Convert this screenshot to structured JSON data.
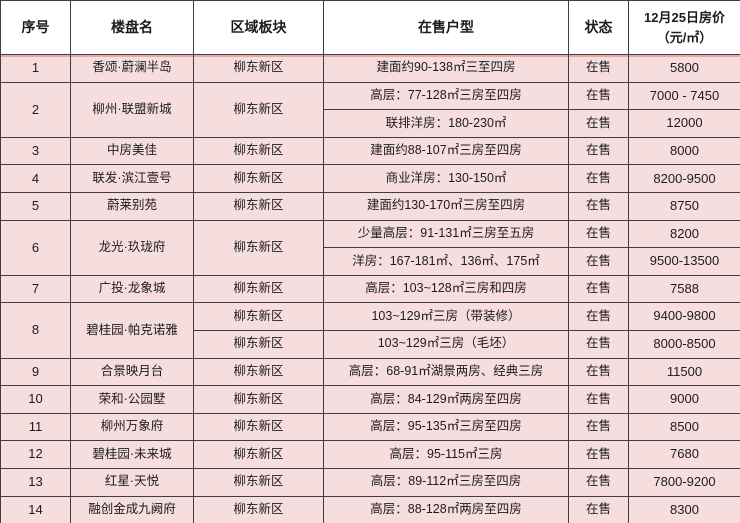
{
  "theme": {
    "border-color": "#3f3f3f",
    "header-bg": "#ffffff",
    "row-bg": "#f6dede",
    "accent-line": "#eea7a5",
    "text-color": "#1c1c1c"
  },
  "header": {
    "col_no": "序号",
    "col_name": "楼盘名",
    "col_region": "区域板块",
    "col_type": "在售户型",
    "col_status": "状态",
    "col_price_line1": "12月25日房价",
    "col_price_line2": "（元/㎡）"
  },
  "rows": [
    {
      "no": "1",
      "name": "香颂·蔚澜半岛",
      "region": "柳东新区",
      "region_split": false,
      "subrows": [
        {
          "type": "建面约90-138㎡三至四房",
          "status": "在售",
          "price": "5800"
        }
      ]
    },
    {
      "no": "2",
      "name": "柳州·联盟新城",
      "region": "柳东新区",
      "region_split": false,
      "subrows": [
        {
          "type": "高层：77-128㎡三房至四房",
          "status": "在售",
          "price": "7000 - 7450"
        },
        {
          "type": "联排洋房：180-230㎡",
          "status": "在售",
          "price": "12000"
        }
      ]
    },
    {
      "no": "3",
      "name": "中房美佳",
      "region": "柳东新区",
      "region_split": false,
      "subrows": [
        {
          "type": "建面约88-107㎡三房至四房",
          "status": "在售",
          "price": "8000"
        }
      ]
    },
    {
      "no": "4",
      "name": "联发·滨江壹号",
      "region": "柳东新区",
      "region_split": false,
      "subrows": [
        {
          "type": "商业洋房：130-150㎡",
          "status": "在售",
          "price": "8200-9500"
        }
      ]
    },
    {
      "no": "5",
      "name": "蔚莱别苑",
      "region": "柳东新区",
      "region_split": false,
      "subrows": [
        {
          "type": "建面约130-170㎡三房至四房",
          "status": "在售",
          "price": "8750"
        }
      ]
    },
    {
      "no": "6",
      "name": "龙光·玖珑府",
      "region": "柳东新区",
      "region_split": false,
      "subrows": [
        {
          "type": "少量高层：91-131㎡三房至五房",
          "status": "在售",
          "price": "8200"
        },
        {
          "type": "洋房：167-181㎡、136㎡、175㎡",
          "status": "在售",
          "price": "9500-13500"
        }
      ]
    },
    {
      "no": "7",
      "name": "广投·龙象城",
      "region": "柳东新区",
      "region_split": false,
      "subrows": [
        {
          "type": "高层：103~128㎡三房和四房",
          "status": "在售",
          "price": "7588"
        }
      ]
    },
    {
      "no": "8",
      "name": "碧桂园·帕克诺雅",
      "region": "柳东新区",
      "region_split": true,
      "subrows": [
        {
          "type": "103~129㎡三房（带装修）",
          "status": "在售",
          "price": "9400-9800"
        },
        {
          "type": "103~129㎡三房（毛坯）",
          "status": "在售",
          "price": "8000-8500"
        }
      ]
    },
    {
      "no": "9",
      "name": "合景映月台",
      "region": "柳东新区",
      "region_split": false,
      "subrows": [
        {
          "type": "高层：68-91㎡湖景两房、经典三房",
          "status": "在售",
          "price": "11500"
        }
      ]
    },
    {
      "no": "10",
      "name": "荣和·公园墅",
      "region": "柳东新区",
      "region_split": false,
      "subrows": [
        {
          "type": "高层：84-129㎡两房至四房",
          "status": "在售",
          "price": "9000"
        }
      ]
    },
    {
      "no": "11",
      "name": "柳州万象府",
      "region": "柳东新区",
      "region_split": false,
      "subrows": [
        {
          "type": "高层：95-135㎡三房至四房",
          "status": "在售",
          "price": "8500"
        }
      ]
    },
    {
      "no": "12",
      "name": "碧桂园·未来城",
      "region": "柳东新区",
      "region_split": false,
      "subrows": [
        {
          "type": "高层：95-115㎡三房",
          "status": "在售",
          "price": "7680"
        }
      ]
    },
    {
      "no": "13",
      "name": "红星·天悦",
      "region": "柳东新区",
      "region_split": false,
      "subrows": [
        {
          "type": "高层：89-112㎡三房至四房",
          "status": "在售",
          "price": "7800-9200"
        }
      ]
    },
    {
      "no": "14",
      "name": "融创金成九阙府",
      "region": "柳东新区",
      "region_split": false,
      "subrows": [
        {
          "type": "高层：88-128㎡两房至四房",
          "status": "在售",
          "price": "8300"
        }
      ]
    }
  ]
}
